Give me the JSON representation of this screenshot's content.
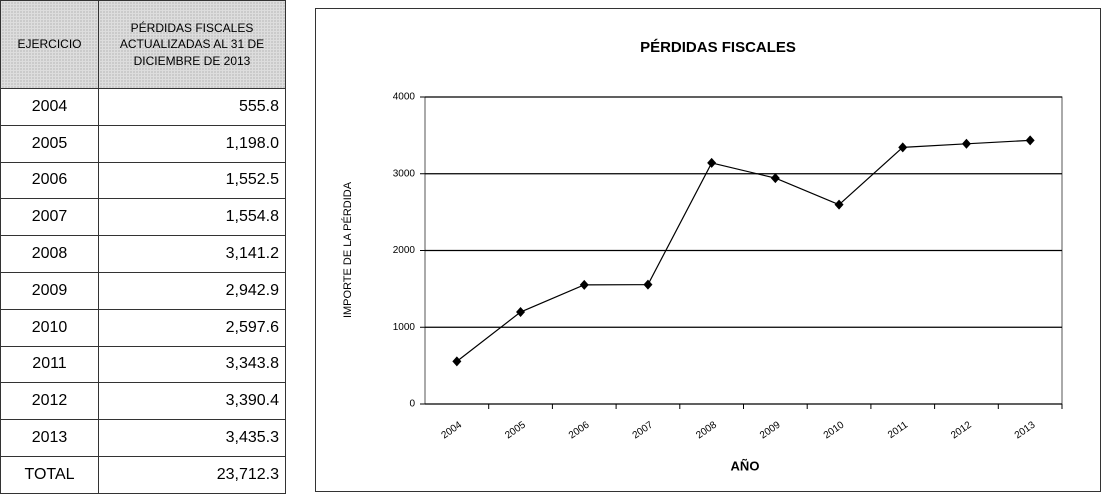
{
  "table": {
    "header": [
      "EJERCICIO",
      "PÉRDIDAS FISCALES ACTUALIZADAS AL 31 DE DICIEMBRE DE 2013"
    ],
    "rows": [
      [
        "2004",
        "555.8"
      ],
      [
        "2005",
        "1,198.0"
      ],
      [
        "2006",
        "1,552.5"
      ],
      [
        "2007",
        "1,554.8"
      ],
      [
        "2008",
        "3,141.2"
      ],
      [
        "2009",
        "2,942.9"
      ],
      [
        "2010",
        "2,597.6"
      ],
      [
        "2011",
        "3,343.8"
      ],
      [
        "2012",
        "3,390.4"
      ],
      [
        "2013",
        "3,435.3"
      ],
      [
        "TOTAL",
        "23,712.3"
      ]
    ]
  },
  "chart_data": {
    "type": "line",
    "title": "PÉRDIDAS FISCALES",
    "x_label": "AÑO",
    "y_label": "IMPORTE DE LA PÉRDIDA",
    "categories": [
      "2004",
      "2005",
      "2006",
      "2007",
      "2008",
      "2009",
      "2010",
      "2011",
      "2012",
      "2013"
    ],
    "values": [
      555.8,
      1198.0,
      1552.5,
      1554.8,
      3141.2,
      2942.9,
      2597.6,
      3343.8,
      3390.4,
      3435.3
    ],
    "color": "#000000",
    "ylim": [
      0,
      4000
    ],
    "yticks": [
      0,
      1000,
      2000,
      3000,
      4000
    ],
    "grid": true
  }
}
